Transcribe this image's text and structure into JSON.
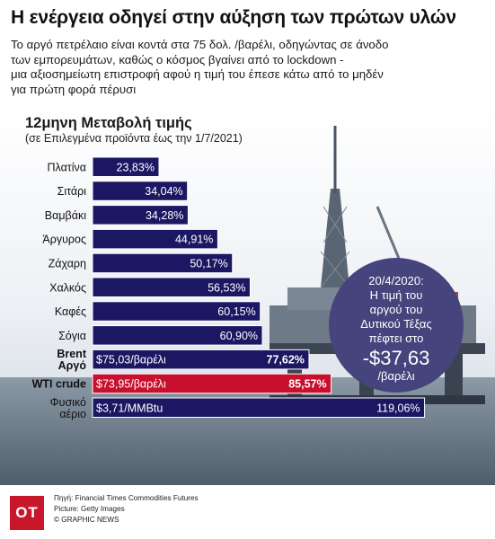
{
  "header": {
    "title": "Η ενέργεια οδηγεί στην αύξηση των πρώτων υλών",
    "subtitle_lines": [
      "Το αργό πετρέλαιο είναι κοντά στα 75 δολ. /βαρέλι, οδηγώντας σε άνοδο",
      "των εμπορευμάτων, καθώς ο κόσμος βγαίνει από το lockdown -",
      "μια αξιοσημείωτη επιστροφή αφού η τιμή του έπεσε κάτω από το μηδέν",
      "για πρώτη φορά πέρυσι"
    ]
  },
  "chart_data": {
    "type": "bar",
    "orientation": "horizontal",
    "title": "12μηνη Μεταβολή τιμής",
    "subtitle": "(σε Επιλεγμένα προϊόντα έως την 1/7/2021)",
    "unit": "%",
    "categories": [
      "Πλατίνα",
      "Σιτάρι",
      "Βαμβάκι",
      "Άργυρος",
      "Ζάχαρη",
      "Χαλκός",
      "Καφές",
      "Σόγια",
      "Brent Αργό",
      "WTI crude",
      "Φυσικό αέριο"
    ],
    "category_lines": [
      [
        "Πλατίνα"
      ],
      [
        "Σιτάρι"
      ],
      [
        "Βαμβάκι"
      ],
      [
        "Άργυρος"
      ],
      [
        "Ζάχαρη"
      ],
      [
        "Χαλκός"
      ],
      [
        "Καφές"
      ],
      [
        "Σόγια"
      ],
      [
        "Brent",
        "Αργό"
      ],
      [
        "WTI crude"
      ],
      [
        "Φυσικό",
        "αέριο"
      ]
    ],
    "values": [
      23.83,
      34.04,
      34.28,
      44.91,
      50.17,
      56.53,
      60.15,
      60.9,
      77.62,
      85.57,
      119.06
    ],
    "value_labels": [
      "23,83%",
      "34,04%",
      "34,28%",
      "44,91%",
      "50,17%",
      "56,53%",
      "60,15%",
      "60,90%",
      "77,62%",
      "85,57%",
      "119,06%"
    ],
    "price_labels": [
      "",
      "",
      "",
      "",
      "",
      "",
      "",
      "",
      "$75,03/βαρέλι",
      "$73,95/βαρέλι",
      "$3,71/MMBtu"
    ],
    "bold_categories": [
      false,
      false,
      false,
      false,
      false,
      false,
      false,
      false,
      true,
      true,
      false
    ],
    "bar_colors": [
      "#1b1762",
      "#1b1762",
      "#1b1762",
      "#1b1762",
      "#1b1762",
      "#1b1762",
      "#1b1762",
      "#1b1762",
      "#1b1762",
      "#c8102e",
      "#1b1762"
    ],
    "xlim": [
      0,
      125
    ],
    "grid": false,
    "legend": "none"
  },
  "callout": {
    "date": "20/4/2020:",
    "text_lines": [
      "Η τιμή του",
      "αργού του",
      "Δυτικού Τέξας",
      "πέφτει στο"
    ],
    "value": "-$37,63",
    "unit": "/βαρέλι"
  },
  "footer": {
    "logo": "OT",
    "source": "Πηγή: Financial Times Commodities Futures",
    "picture": "Picture: Getty Images",
    "credit": "© GRAPHIC NEWS"
  },
  "colors": {
    "bar": "#1b1762",
    "highlight": "#c8102e",
    "callout": "#46447c",
    "logo": "#c8172b"
  }
}
